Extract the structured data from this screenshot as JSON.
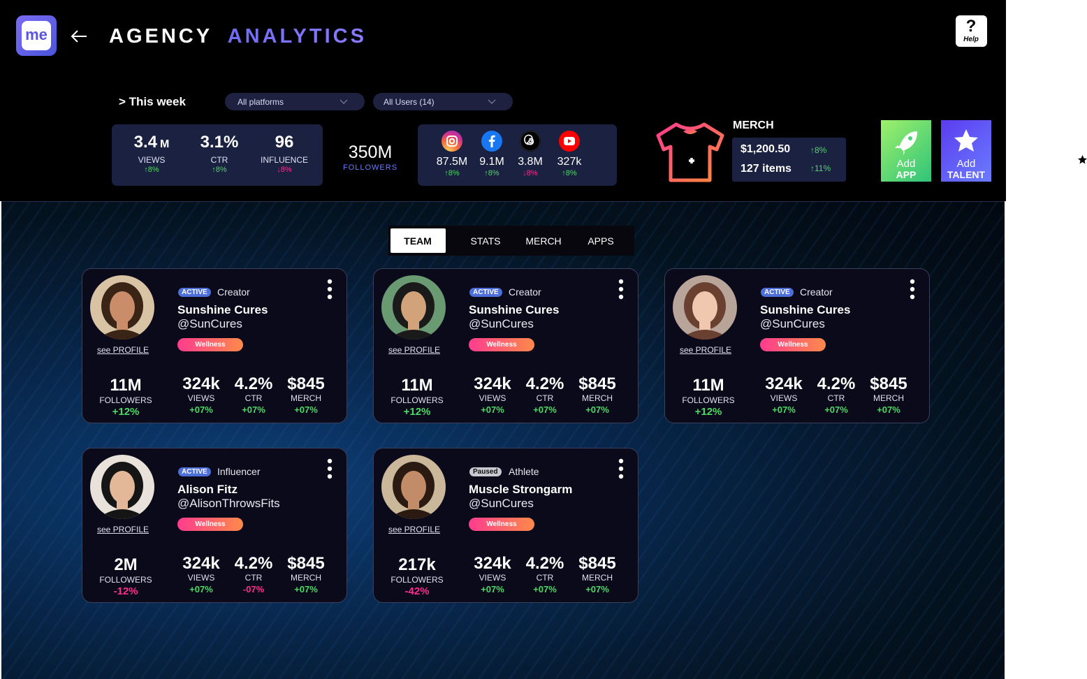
{
  "header": {
    "logo": "me",
    "title_1": "AGENCY",
    "title_2": "ANALYTICS",
    "help_icon": "?",
    "help_label": "Help"
  },
  "filters": {
    "period": "> This week",
    "platform": "All platforms",
    "users": "All Users (14)"
  },
  "summary": [
    {
      "value": "3.4",
      "unit": "M",
      "label": "VIEWS",
      "change": "↑8%"
    },
    {
      "value": "3.1%",
      "unit": "",
      "label": "CTR",
      "change": "↑8%"
    },
    {
      "value": "96",
      "unit": "",
      "label": "INFLUENCE",
      "change": "↓8%"
    }
  ],
  "followers": {
    "value": "350M",
    "label": "FOLLOWERS"
  },
  "platforms": [
    {
      "value": "87.5M",
      "change": "↑8%"
    },
    {
      "value": "9.1M",
      "change": "↑8%"
    },
    {
      "value": "3.8M",
      "change": "↓8%"
    },
    {
      "value": "327k",
      "change": "↑8%"
    }
  ],
  "merch": {
    "title": "MERCH",
    "revenue": "$1,200.50",
    "revenue_change": "↑8%",
    "items": "127 items",
    "items_change": "↑11%"
  },
  "actions": [
    {
      "line_1": "Add",
      "line_2": "APP"
    },
    {
      "line_1": "Add",
      "line_2": "TALENT"
    }
  ],
  "tabs": [
    "TEAM",
    "STATS",
    "MERCH",
    "APPS"
  ],
  "cards": [
    {
      "status": "ACTIVE",
      "role": "Creator",
      "name": "Sunshine Cures",
      "handle": "@SunCures",
      "tag": "Wellness",
      "link": "see PROFILE",
      "followers": "11M",
      "followers_label": "FOLLOWERS",
      "followers_change": "+12%",
      "stats": [
        {
          "value": "324k",
          "label": "VIEWS",
          "change": "+07%"
        },
        {
          "value": "4.2%",
          "label": "CTR",
          "change": "+07%"
        },
        {
          "value": "$845",
          "label": "MERCH",
          "change": "+07%"
        }
      ]
    },
    {
      "status": "ACTIVE",
      "role": "Creator",
      "name": "Sunshine Cures",
      "handle": "@SunCures",
      "tag": "Wellness",
      "link": "see PROFILE",
      "followers": "11M",
      "followers_label": "FOLLOWERS",
      "followers_change": "+12%",
      "stats": [
        {
          "value": "324k",
          "label": "VIEWS",
          "change": "+07%"
        },
        {
          "value": "4.2%",
          "label": "CTR",
          "change": "+07%"
        },
        {
          "value": "$845",
          "label": "MERCH",
          "change": "+07%"
        }
      ]
    },
    {
      "status": "ACTIVE",
      "role": "Creator",
      "name": "Sunshine Cures",
      "handle": "@SunCures",
      "tag": "Wellness",
      "link": "see PROFILE",
      "followers": "11M",
      "followers_label": "FOLLOWERS",
      "followers_change": "+12%",
      "stats": [
        {
          "value": "324k",
          "label": "VIEWS",
          "change": "+07%"
        },
        {
          "value": "4.2%",
          "label": "CTR",
          "change": "+07%"
        },
        {
          "value": "$845",
          "label": "MERCH",
          "change": "+07%"
        }
      ]
    },
    {
      "status": "ACTIVE",
      "role": "Influencer",
      "name": "Alison Fitz",
      "handle": "@AlisonThrowsFits",
      "tag": "Wellness",
      "link": "see PROFILE",
      "followers": "2M",
      "followers_label": "FOLLOWERS",
      "followers_change": "-12%",
      "stats": [
        {
          "value": "324k",
          "label": "VIEWS",
          "change": "+07%"
        },
        {
          "value": "4.2%",
          "label": "CTR",
          "change": "-07%"
        },
        {
          "value": "$845",
          "label": "MERCH",
          "change": "+07%"
        }
      ]
    },
    {
      "status": "Paused",
      "role": "Athlete",
      "name": "Muscle Strongarm",
      "handle": "@SunCures",
      "tag": "Wellness",
      "link": "see PROFILE",
      "followers": "217k",
      "followers_label": "FOLLOWERS",
      "followers_change": "-42%",
      "stats": [
        {
          "value": "324k",
          "label": "VIEWS",
          "change": "+07%"
        },
        {
          "value": "4.2%",
          "label": "CTR",
          "change": "+07%"
        },
        {
          "value": "$845",
          "label": "MERCH",
          "change": "+07%"
        }
      ]
    }
  ]
}
